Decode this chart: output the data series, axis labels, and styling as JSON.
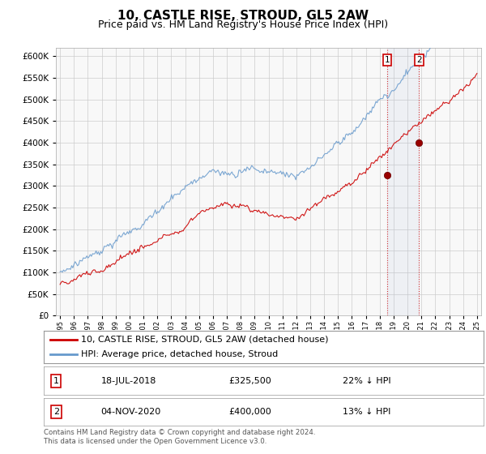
{
  "title": "10, CASTLE RISE, STROUD, GL5 2AW",
  "subtitle": "Price paid vs. HM Land Registry's House Price Index (HPI)",
  "ylim": [
    0,
    620000
  ],
  "yticks": [
    0,
    50000,
    100000,
    150000,
    200000,
    250000,
    300000,
    350000,
    400000,
    450000,
    500000,
    550000,
    600000
  ],
  "hpi_color": "#6699cc",
  "price_color": "#cc0000",
  "marker1_price": 325500,
  "marker2_price": 400000,
  "sale1_year": 2018.54,
  "sale2_year": 2020.84,
  "start_year": 1995,
  "end_year": 2025,
  "sale1_label": "18-JUL-2018",
  "sale1_price_label": "£325,500",
  "sale1_hpi_label": "22% ↓ HPI",
  "sale2_label": "04-NOV-2020",
  "sale2_price_label": "£400,000",
  "sale2_hpi_label": "13% ↓ HPI",
  "legend_line1": "10, CASTLE RISE, STROUD, GL5 2AW (detached house)",
  "legend_line2": "HPI: Average price, detached house, Stroud",
  "footer": "Contains HM Land Registry data © Crown copyright and database right 2024.\nThis data is licensed under the Open Government Licence v3.0.",
  "title_fontsize": 11,
  "subtitle_fontsize": 9,
  "background_color": "#ffffff",
  "grid_color": "#cccccc",
  "chart_bg": "#f5f5f5"
}
